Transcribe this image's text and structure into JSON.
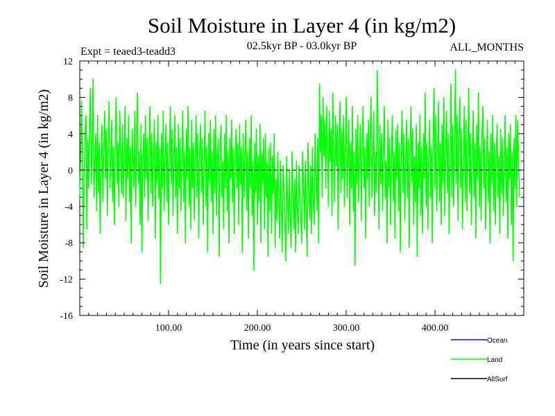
{
  "chart_data": {
    "type": "line",
    "title": "Soil Moisture in Layer 4 (in kg/m2)",
    "subtitle_left": "Expt = teaed3-teadd3",
    "subtitle_center": "02.5kyr BP - 03.0kyr BP",
    "subtitle_right": "ALL_MONTHS",
    "xlabel": "Time (in years since start)",
    "ylabel": "Soil Moisture in Layer 4 (in kg/m2)",
    "xlim": [
      0,
      500
    ],
    "ylim": [
      -16,
      12
    ],
    "x_ticks": [
      100,
      200,
      300,
      400
    ],
    "x_tick_labels": [
      "100.00",
      "200.00",
      "300.00",
      "400.00"
    ],
    "y_ticks": [
      -16,
      -12,
      -8,
      -4,
      0,
      4,
      8,
      12
    ],
    "y_tick_labels": [
      "-16",
      "-12",
      "-8",
      "-4",
      "0",
      "4",
      "8",
      "12"
    ],
    "zero_line": true,
    "legend": [
      {
        "name": "Ocean",
        "color": "#0000ff"
      },
      {
        "name": "Land",
        "color": "#00ff00"
      },
      {
        "name": "AllSurf",
        "color": "#000000"
      }
    ],
    "series": [
      {
        "name": "Land",
        "color": "#00ff00",
        "x_start": 0,
        "x_step": 1,
        "values": [
          -3.2,
          1.5,
          7.5,
          2.0,
          -8.5,
          -1.0,
          4.5,
          6.0,
          -6.5,
          3.5,
          -2.0,
          5.0,
          9.0,
          -1.5,
          2.5,
          10.0,
          -3.0,
          1.0,
          4.0,
          -4.5,
          6.0,
          -2.5,
          3.0,
          -7.0,
          1.5,
          5.0,
          -3.5,
          2.0,
          6.5,
          -1.0,
          4.5,
          -5.0,
          3.0,
          7.5,
          -2.0,
          1.0,
          5.5,
          -3.5,
          2.5,
          -6.0,
          4.0,
          8.0,
          -1.5,
          3.0,
          -4.0,
          6.5,
          2.0,
          -2.5,
          5.0,
          -3.0,
          1.5,
          7.0,
          -5.5,
          3.5,
          -1.0,
          6.0,
          -3.5,
          2.5,
          -8.0,
          4.5,
          1.0,
          -2.0,
          6.5,
          -4.0,
          3.0,
          8.5,
          -1.5,
          2.0,
          -6.0,
          5.0,
          -9.0,
          1.5,
          4.0,
          -3.0,
          6.0,
          -1.0,
          3.5,
          -5.5,
          2.0,
          7.0,
          -2.5,
          4.0,
          -4.0,
          1.5,
          5.5,
          -7.5,
          3.0,
          -1.5,
          6.0,
          -3.0,
          2.5,
          -12.5,
          4.0,
          -2.0,
          6.5,
          -4.5,
          1.0,
          5.0,
          -3.5,
          3.0,
          -6.0,
          2.0,
          7.0,
          -1.5,
          4.5,
          -5.0,
          1.5,
          6.0,
          -3.0,
          2.5,
          -7.0,
          5.0,
          -2.0,
          3.5,
          -4.5,
          1.0,
          6.5,
          -3.5,
          2.0,
          -8.0,
          4.5,
          -1.0,
          7.0,
          -4.0,
          2.5,
          -6.5,
          5.5,
          -2.0,
          3.0,
          -5.5,
          1.5,
          6.0,
          -3.0,
          4.0,
          -7.5,
          2.0,
          5.0,
          -2.5,
          3.5,
          -6.0,
          1.0,
          6.5,
          -4.0,
          2.5,
          -9.0,
          4.0,
          -1.5,
          5.5,
          -3.5,
          2.0,
          -7.0,
          4.5,
          -2.5,
          6.0,
          -5.0,
          1.5,
          3.5,
          -9.5,
          2.5,
          5.0,
          -3.0,
          1.0,
          -6.5,
          4.0,
          -2.0,
          6.0,
          -4.5,
          2.0,
          -8.0,
          3.5,
          -1.0,
          5.5,
          -3.5,
          2.5,
          -7.0,
          1.5,
          4.5,
          -2.0,
          3.0,
          -6.0,
          5.0,
          -1.5,
          2.5,
          -9.0,
          4.0,
          -3.0,
          1.5,
          5.5,
          -4.5,
          2.0,
          -7.5,
          3.5,
          -2.0,
          6.0,
          -5.0,
          1.0,
          -11.0,
          3.0,
          -2.5,
          4.5,
          -6.0,
          1.5,
          -3.5,
          5.0,
          -8.0,
          2.0,
          -1.5,
          3.5,
          -6.5,
          4.0,
          -3.0,
          1.0,
          -9.5,
          2.5,
          -4.5,
          3.0,
          -7.0,
          1.5,
          -2.5,
          4.0,
          -8.5,
          -1.0,
          -5.5,
          2.0,
          -3.5,
          -7.5,
          1.0,
          -4.0,
          -9.0,
          0.5,
          -2.0,
          -6.0,
          -10.0,
          1.5,
          -3.5,
          -7.0,
          0.0,
          -5.0,
          -8.5,
          2.0,
          -2.5,
          -6.5,
          -1.0,
          -9.0,
          1.0,
          -4.0,
          -7.0,
          0.5,
          -3.0,
          -5.5,
          -8.0,
          2.0,
          -1.5,
          -6.5,
          1.0,
          -4.5,
          -9.5,
          3.0,
          -2.0,
          -5.5,
          0.5,
          -7.0,
          2.5,
          -3.5,
          -6.0,
          4.0,
          -1.0,
          -4.5,
          3.5,
          -8.0,
          9.5,
          2.0,
          6.0,
          -3.0,
          8.0,
          1.5,
          5.5,
          -2.0,
          7.0,
          3.0,
          -4.0,
          6.5,
          1.0,
          4.5,
          -5.0,
          8.5,
          2.0,
          -3.5,
          6.0,
          0.5,
          5.0,
          -6.5,
          3.5,
          7.5,
          -2.5,
          4.5,
          -1.0,
          6.0,
          -4.0,
          2.5,
          8.0,
          -3.0,
          1.5,
          5.5,
          -6.0,
          3.0,
          -2.0,
          7.0,
          -4.5,
          2.0,
          -10.5,
          4.5,
          -1.5,
          6.0,
          -3.5,
          1.0,
          5.0,
          -5.5,
          3.0,
          7.0,
          -2.0,
          2.5,
          -7.5,
          4.0,
          -1.0,
          5.5,
          -4.0,
          3.5,
          8.0,
          -3.0,
          1.5,
          6.5,
          -5.0,
          2.0,
          -2.5,
          11.0,
          3.0,
          -6.5,
          5.0,
          -1.5,
          4.0,
          -4.5,
          2.5,
          7.0,
          -3.0,
          1.0,
          -8.0,
          5.5,
          -2.0,
          3.5,
          -6.0,
          1.5,
          6.0,
          -3.5,
          2.0,
          -7.5,
          4.5,
          -1.0,
          5.0,
          -4.5,
          3.0,
          -9.0,
          2.5,
          6.5,
          -2.5,
          4.0,
          -5.5,
          1.0,
          5.5,
          -3.0,
          3.5,
          -8.5,
          2.0,
          7.0,
          -1.5,
          4.5,
          -6.0,
          1.5,
          -3.5,
          5.0,
          -9.5,
          3.0,
          -2.0,
          6.0,
          -5.0,
          2.5,
          -7.0,
          4.0,
          -1.0,
          8.5,
          -4.0,
          3.0,
          -6.5,
          1.5,
          5.5,
          -3.0,
          2.5,
          -8.0,
          4.5,
          9.0,
          -2.0,
          6.0,
          -4.5,
          1.0,
          7.5,
          -3.5,
          3.0,
          -6.0,
          5.0,
          -1.5,
          8.0,
          -5.0,
          2.0,
          6.5,
          -2.5,
          4.0,
          -7.0,
          1.5,
          9.5,
          -3.0,
          5.0,
          -4.0,
          2.5,
          11.0,
          -1.5,
          6.0,
          -5.5,
          3.5,
          8.0,
          -2.0,
          4.5,
          -6.5,
          1.0,
          7.0,
          -3.5,
          5.5,
          -4.5,
          2.0,
          9.0,
          -2.5,
          4.0,
          -6.0,
          1.5,
          6.5,
          -3.0,
          3.0,
          -7.5,
          5.0,
          -1.0,
          8.5,
          -4.0,
          2.5,
          -5.5,
          4.5,
          7.0,
          -2.0,
          3.5,
          -6.5,
          1.0,
          5.5,
          -3.5,
          2.0,
          -8.0,
          4.0,
          -1.5,
          6.0,
          -4.5,
          3.0,
          -6.0,
          2.0,
          5.0,
          -3.0,
          1.5,
          -7.0,
          4.5,
          -2.5,
          3.5,
          -5.0,
          1.0,
          6.0,
          -3.5,
          2.5,
          -7.5,
          4.0,
          -1.0,
          5.0,
          -6.0,
          2.0,
          -10.0,
          3.5,
          -2.0,
          6.0,
          -4.0,
          5.5,
          2.0,
          -3.0
        ]
      }
    ]
  }
}
